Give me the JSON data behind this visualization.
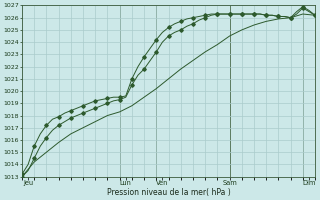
{
  "xlabel": "Pression niveau de la mer( hPa )",
  "bg_color": "#cce8e8",
  "grid_color": "#aacccc",
  "line_color": "#2d5a2d",
  "vline_color": "#4a6a4a",
  "ylim": [
    1013,
    1027
  ],
  "xlim": [
    0,
    24
  ],
  "yticks": [
    1013,
    1014,
    1015,
    1016,
    1017,
    1018,
    1019,
    1020,
    1021,
    1022,
    1023,
    1024,
    1025,
    1026,
    1027
  ],
  "day_labels": [
    "Jeu",
    "Lun",
    "Ven",
    "Sam",
    "Dim"
  ],
  "day_positions": [
    0.5,
    8.5,
    11.5,
    17.0,
    23.5
  ],
  "vline_positions": [
    8.0,
    11.0,
    17.0,
    23.0
  ],
  "minor_xticks": [
    0,
    1,
    2,
    3,
    4,
    5,
    6,
    7,
    8,
    9,
    10,
    11,
    12,
    13,
    14,
    15,
    16,
    17,
    18,
    19,
    20,
    21,
    22,
    23,
    24
  ],
  "line1_x": [
    0,
    0.5,
    1,
    1.5,
    2,
    2.5,
    3,
    3.5,
    4,
    4.5,
    5,
    5.5,
    6,
    6.5,
    7,
    7.5,
    8,
    8.5,
    9,
    9.5,
    10,
    10.5,
    11,
    11.5,
    12,
    12.5,
    13,
    13.5,
    14,
    14.5,
    15,
    15.5,
    16,
    16.5,
    17,
    17.5,
    18,
    18.5,
    19,
    19.5,
    20,
    20.5,
    21,
    21.5,
    22,
    22.5,
    23,
    23.5,
    24
  ],
  "line1_y": [
    1013.0,
    1013.5,
    1014.5,
    1015.5,
    1016.2,
    1016.8,
    1017.2,
    1017.5,
    1017.8,
    1018.0,
    1018.2,
    1018.4,
    1018.6,
    1018.8,
    1019.0,
    1019.2,
    1019.3,
    1019.5,
    1020.5,
    1021.3,
    1021.8,
    1022.5,
    1023.2,
    1024.0,
    1024.5,
    1024.8,
    1025.0,
    1025.3,
    1025.5,
    1025.8,
    1026.0,
    1026.2,
    1026.3,
    1026.3,
    1026.3,
    1026.3,
    1026.3,
    1026.3,
    1026.3,
    1026.3,
    1026.2,
    1026.2,
    1026.1,
    1026.1,
    1026.0,
    1026.3,
    1026.8,
    1026.5,
    1026.2
  ],
  "line2_x": [
    0,
    0.5,
    1,
    1.5,
    2,
    2.5,
    3,
    3.5,
    4,
    4.5,
    5,
    5.5,
    6,
    6.5,
    7,
    7.5,
    8,
    8.5,
    9,
    9.5,
    10,
    10.5,
    11,
    11.5,
    12,
    12.5,
    13,
    13.5,
    14,
    14.5,
    15,
    15.5,
    16,
    16.5,
    17,
    17.5,
    18,
    18.5,
    19,
    19.5,
    20,
    20.5,
    21,
    21.5,
    22,
    22.5,
    23,
    23.5,
    24
  ],
  "line2_y": [
    1013.2,
    1014.0,
    1015.5,
    1016.5,
    1017.2,
    1017.7,
    1017.9,
    1018.2,
    1018.4,
    1018.6,
    1018.8,
    1019.0,
    1019.2,
    1019.3,
    1019.4,
    1019.5,
    1019.5,
    1019.6,
    1021.0,
    1022.0,
    1022.8,
    1023.5,
    1024.2,
    1024.8,
    1025.2,
    1025.5,
    1025.7,
    1025.9,
    1026.0,
    1026.1,
    1026.2,
    1026.3,
    1026.3,
    1026.3,
    1026.3,
    1026.3,
    1026.3,
    1026.3,
    1026.3,
    1026.3,
    1026.2,
    1026.2,
    1026.1,
    1026.1,
    1026.0,
    1026.5,
    1026.9,
    1026.6,
    1026.2
  ],
  "line3_x": [
    0,
    1,
    2,
    3,
    4,
    5,
    6,
    7,
    8,
    9,
    10,
    11,
    12,
    13,
    14,
    15,
    16,
    17,
    18,
    19,
    20,
    21,
    22,
    23,
    24
  ],
  "line3_y": [
    1013.0,
    1014.2,
    1015.0,
    1015.8,
    1016.5,
    1017.0,
    1017.5,
    1018.0,
    1018.3,
    1018.8,
    1019.5,
    1020.2,
    1021.0,
    1021.8,
    1022.5,
    1023.2,
    1023.8,
    1024.5,
    1025.0,
    1025.4,
    1025.7,
    1025.9,
    1026.0,
    1026.3,
    1026.2
  ]
}
